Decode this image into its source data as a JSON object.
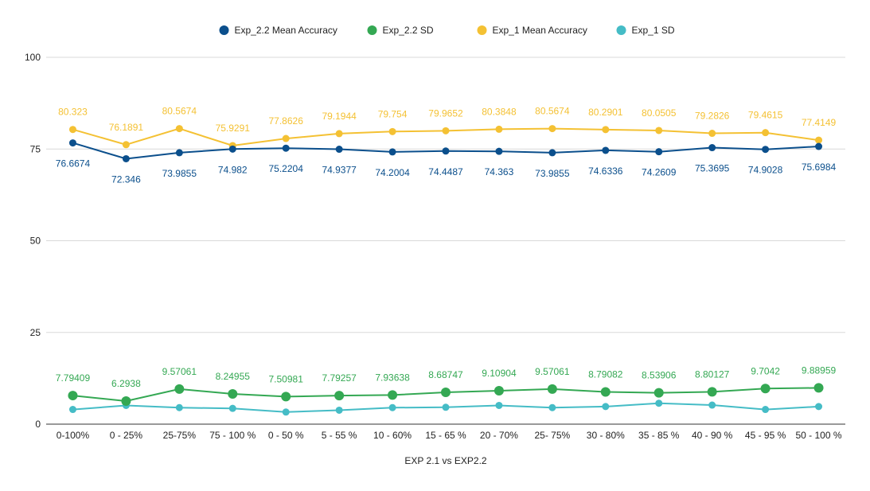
{
  "chart_data": {
    "type": "line",
    "title": "",
    "xlabel": "EXP 2.1 vs EXP2.2",
    "ylabel": "",
    "ylim": [
      0,
      100
    ],
    "yticks": [
      0,
      25,
      50,
      75,
      100
    ],
    "grid": true,
    "legend_position": "top",
    "categories": [
      "0-100%",
      "0 - 25%",
      "25-75%",
      "75 - 100 %",
      "0 - 50 %",
      "5 - 55 %",
      "10 - 60%",
      "15 - 65 %",
      "20 - 70%",
      "25- 75%",
      "30 - 80%",
      "35 - 85 %",
      "40 - 90 %",
      "45 - 95 %",
      "50 - 100 %"
    ],
    "series": [
      {
        "name": "Exp_2.2 Mean Accuracy",
        "color": "#0b4f8c",
        "label_position": "below",
        "values": [
          76.6674,
          72.346,
          73.9855,
          74.982,
          75.2204,
          74.9377,
          74.2004,
          74.4487,
          74.363,
          73.9855,
          74.6336,
          74.2609,
          75.3695,
          74.9028,
          75.6984
        ],
        "labels": [
          "76.6674",
          "72.346",
          "73.9855",
          "74.982",
          "75.2204",
          "74.9377",
          "74.2004",
          "74.4487",
          "74.363",
          "73.9855",
          "74.6336",
          "74.2609",
          "75.3695",
          "74.9028",
          "75.6984"
        ]
      },
      {
        "name": "Exp_2.2 SD",
        "color": "#34a853",
        "label_position": "above",
        "values": [
          7.79409,
          6.2938,
          9.57061,
          8.24955,
          7.50981,
          7.79257,
          7.93638,
          8.68747,
          9.10904,
          9.57061,
          8.79082,
          8.53906,
          8.80127,
          9.7042,
          9.88959
        ],
        "labels": [
          "7.79409",
          "6.2938",
          "9.57061",
          "8.24955",
          "7.50981",
          "7.79257",
          "7.93638",
          "8.68747",
          "9.10904",
          "9.57061",
          "8.79082",
          "8.53906",
          "8.80127",
          "9.7042",
          "9.88959"
        ]
      },
      {
        "name": "Exp_1 Mean Accuracy",
        "color": "#f4c133",
        "label_position": "above",
        "values": [
          80.323,
          76.1891,
          80.5674,
          75.9291,
          77.8626,
          79.1944,
          79.754,
          79.9652,
          80.3848,
          80.5674,
          80.2901,
          80.0505,
          79.2826,
          79.4615,
          77.4149
        ],
        "labels": [
          "80.323",
          "76.1891",
          "80.5674",
          "75.9291",
          "77.8626",
          "79.1944",
          "79.754",
          "79.9652",
          "80.3848",
          "80.5674",
          "80.2901",
          "80.0505",
          "79.2826",
          "79.4615",
          "77.4149"
        ]
      },
      {
        "name": "Exp_1 SD",
        "color": "#45bcc6",
        "label_position": "none",
        "values": [
          4.0,
          5.1,
          4.5,
          4.3,
          3.3,
          3.8,
          4.5,
          4.6,
          5.1,
          4.5,
          4.8,
          5.7,
          5.2,
          4.0,
          4.8
        ],
        "labels": []
      }
    ]
  }
}
